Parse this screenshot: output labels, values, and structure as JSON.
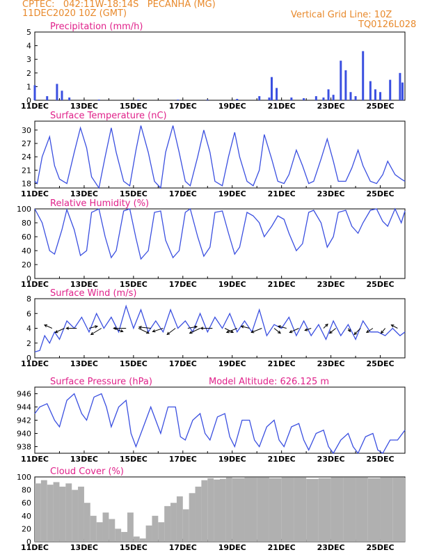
{
  "header": {
    "line1": "CPTEC:   042:11W-18:14S   PECANHA (MG)",
    "line2": "11DEC2020 10Z (GMT)",
    "right1": "Vertical Grid Line: 10Z",
    "right2": "TQ0126L028"
  },
  "colors": {
    "header": "#e8892b",
    "title": "#e0218a",
    "line": "#3a4fe0",
    "cloud": "#b0b0b0",
    "arrow": "#000000"
  },
  "chart_data": [
    {
      "type": "bar",
      "title": "Precipitation (mm/h)",
      "ylim": [
        0,
        5
      ],
      "yticks": [
        "0",
        "1",
        "2",
        "3",
        "4",
        "5"
      ],
      "xticks": [
        "11DEC",
        "13DEC",
        "15DEC",
        "17DEC",
        "19DEC",
        "21DEC",
        "23DEC",
        "25DEC"
      ],
      "x": [
        "11DEC",
        "11.5DEC",
        "11.9DEC",
        "12.1DEC",
        "12.4DEC",
        "13.6DEC",
        "15.2DEC",
        "16.8DEC",
        "18.0DEC",
        "19.2DEC",
        "20.1DEC",
        "20.5DEC",
        "20.6DEC",
        "20.8DEC",
        "21.4DEC",
        "21.9DEC",
        "22.4DEC",
        "22.7DEC",
        "22.9DEC",
        "23.1DEC",
        "23.4DEC",
        "23.6DEC",
        "23.8DEC",
        "24.0DEC",
        "24.3DEC",
        "24.6DEC",
        "24.8DEC",
        "25.0DEC",
        "25.4DEC",
        "25.8DEC",
        "25.9DEC"
      ],
      "values": [
        1.1,
        0.3,
        1.2,
        0.7,
        0.2,
        0.05,
        0.05,
        0.05,
        0.05,
        0.1,
        0.3,
        0.2,
        1.7,
        0.9,
        0.2,
        0.15,
        0.3,
        0.2,
        0.8,
        0.4,
        2.9,
        2.2,
        0.6,
        0.3,
        3.6,
        1.4,
        0.8,
        0.6,
        1.5,
        2.0,
        1.3
      ]
    },
    {
      "type": "line",
      "title": "Surface Temperature (nC)",
      "ylim": [
        17,
        32
      ],
      "yticks": [
        "18",
        "21",
        "24",
        "27",
        "30"
      ],
      "xticks": [
        "11DEC",
        "13DEC",
        "15DEC",
        "17DEC",
        "19DEC",
        "21DEC",
        "23DEC",
        "25DEC"
      ],
      "x": [
        11.0,
        11.1,
        11.3,
        11.6,
        11.8,
        12.0,
        12.3,
        12.6,
        12.85,
        13.1,
        13.3,
        13.6,
        13.85,
        14.1,
        14.3,
        14.6,
        14.85,
        15.1,
        15.3,
        15.6,
        15.85,
        16.1,
        16.3,
        16.6,
        16.85,
        17.1,
        17.3,
        17.6,
        17.85,
        18.1,
        18.3,
        18.6,
        18.85,
        19.1,
        19.3,
        19.6,
        19.85,
        20.1,
        20.3,
        20.6,
        20.85,
        21.1,
        21.3,
        21.6,
        21.85,
        22.1,
        22.3,
        22.6,
        22.85,
        23.1,
        23.3,
        23.6,
        23.85,
        24.1,
        24.3,
        24.6,
        24.85,
        25.1,
        25.3,
        25.6,
        25.85,
        26.0
      ],
      "y": [
        18.5,
        18.0,
        24.0,
        28.5,
        22.0,
        19.0,
        18.0,
        25.0,
        30.5,
        26.0,
        19.5,
        17.0,
        24.0,
        30.5,
        25.0,
        18.5,
        17.5,
        25.5,
        31.0,
        25.0,
        18.5,
        17.0,
        25.0,
        31.0,
        25.0,
        18.5,
        17.5,
        24.0,
        30.0,
        25.0,
        18.5,
        17.5,
        24.0,
        29.5,
        24.0,
        18.5,
        17.5,
        21.0,
        29.0,
        23.5,
        18.5,
        18.0,
        20.0,
        25.5,
        22.0,
        18.0,
        18.5,
        23.5,
        28.0,
        23.0,
        18.5,
        18.5,
        21.5,
        25.5,
        22.0,
        18.5,
        18.0,
        20.0,
        23.0,
        20.0,
        19.0,
        18.5
      ]
    },
    {
      "type": "line",
      "title": "Relative Humidity (%)",
      "ylim": [
        0,
        100
      ],
      "yticks": [
        "0",
        "20",
        "40",
        "60",
        "80",
        "100"
      ],
      "xticks": [
        "11DEC",
        "13DEC",
        "15DEC",
        "17DEC",
        "19DEC",
        "21DEC",
        "23DEC",
        "25DEC"
      ],
      "x": [
        11.0,
        11.3,
        11.6,
        11.8,
        12.1,
        12.3,
        12.6,
        12.85,
        13.1,
        13.3,
        13.6,
        13.85,
        14.1,
        14.3,
        14.6,
        14.85,
        15.1,
        15.3,
        15.6,
        15.85,
        16.1,
        16.3,
        16.6,
        16.85,
        17.1,
        17.3,
        17.6,
        17.85,
        18.1,
        18.3,
        18.6,
        18.85,
        19.1,
        19.3,
        19.6,
        19.85,
        20.1,
        20.3,
        20.6,
        20.85,
        21.1,
        21.3,
        21.6,
        21.85,
        22.1,
        22.3,
        22.6,
        22.85,
        23.1,
        23.3,
        23.6,
        23.85,
        24.1,
        24.3,
        24.6,
        24.85,
        25.1,
        25.3,
        25.6,
        25.85,
        26.0
      ],
      "y": [
        100,
        80,
        40,
        35,
        70,
        99,
        70,
        33,
        40,
        95,
        100,
        60,
        30,
        40,
        97,
        100,
        58,
        28,
        40,
        95,
        97,
        55,
        30,
        40,
        95,
        100,
        60,
        32,
        45,
        95,
        97,
        65,
        35,
        45,
        95,
        90,
        80,
        60,
        75,
        90,
        85,
        65,
        40,
        50,
        95,
        98,
        80,
        45,
        60,
        95,
        98,
        75,
        65,
        80,
        98,
        100,
        82,
        75,
        100,
        80,
        97
      ]
    },
    {
      "type": "line",
      "title": "Surface Wind (m/s)",
      "ylim": [
        0,
        8
      ],
      "yticks": [
        "0",
        "2",
        "4",
        "6",
        "8"
      ],
      "xticks": [
        "11DEC",
        "13DEC",
        "15DEC",
        "17DEC",
        "19DEC",
        "21DEC",
        "23DEC",
        "25DEC"
      ],
      "x": [
        11.0,
        11.2,
        11.4,
        11.6,
        11.8,
        12.0,
        12.3,
        12.6,
        12.9,
        13.2,
        13.5,
        13.8,
        14.1,
        14.4,
        14.7,
        15.0,
        15.3,
        15.6,
        15.9,
        16.2,
        16.5,
        16.8,
        17.1,
        17.4,
        17.7,
        18.0,
        18.3,
        18.6,
        18.9,
        19.2,
        19.5,
        19.8,
        20.1,
        20.4,
        20.7,
        21.0,
        21.3,
        21.6,
        21.9,
        22.2,
        22.5,
        22.8,
        23.1,
        23.4,
        23.7,
        24.0,
        24.3,
        24.6,
        24.9,
        25.2,
        25.5,
        25.8,
        26.0
      ],
      "y": [
        0.8,
        1.0,
        3.0,
        2.0,
        3.5,
        2.5,
        5.0,
        4.0,
        5.5,
        3.5,
        6.0,
        4.0,
        5.5,
        3.5,
        7.0,
        4.0,
        6.5,
        3.5,
        5.0,
        3.5,
        6.5,
        4.0,
        5.0,
        3.5,
        6.0,
        3.5,
        5.5,
        4.0,
        6.0,
        3.5,
        5.0,
        3.5,
        6.5,
        3.0,
        4.5,
        4.0,
        5.5,
        3.0,
        5.0,
        3.0,
        4.5,
        2.5,
        5.0,
        3.0,
        4.5,
        2.5,
        5.0,
        3.5,
        3.5,
        3.0,
        4.0,
        3.0,
        3.5
      ],
      "vectors_x": [
        11.7,
        12.2,
        12.7,
        13.2,
        13.7,
        14.2,
        14.7,
        15.2,
        15.7,
        16.2,
        16.7,
        17.2,
        17.7,
        18.2,
        18.7,
        19.2,
        19.7,
        20.2,
        20.7,
        21.2,
        21.7,
        22.2,
        22.7,
        23.2,
        23.7,
        24.2,
        24.7,
        25.2,
        25.7
      ],
      "vectors_u": [
        -1.8,
        -2.2,
        -2.5,
        2.0,
        -2.5,
        2.2,
        -3.0,
        2.5,
        -2.8,
        -2.5,
        -2.0,
        2.2,
        -2.5,
        -2.8,
        2.0,
        -2.5,
        -2.0,
        -2.5,
        1.5,
        -2.0,
        -2.2,
        -1.5,
        1.0,
        -1.5,
        0.5,
        -1.5,
        -1.5,
        -1.0,
        -1.5
      ],
      "vectors_v": [
        0.8,
        -1.0,
        0.0,
        0.5,
        -1.5,
        -0.8,
        0.0,
        -1.2,
        0.3,
        -0.8,
        -1.5,
        0.4,
        -1.2,
        0.0,
        -1.0,
        -1.0,
        0.5,
        -1.0,
        -1.2,
        0.5,
        -1.0,
        -0.5,
        1.0,
        -1.2,
        -0.8,
        -1.5,
        -1.0,
        -1.2,
        0.8
      ]
    },
    {
      "type": "line",
      "title": "Surface Pressure (hPa)",
      "annotation": "Model Altitude: 626.125  m",
      "ylim": [
        937,
        947
      ],
      "yticks": [
        "938",
        "940",
        "942",
        "944",
        "946"
      ],
      "xticks": [
        "11DEC",
        "13DEC",
        "15DEC",
        "17DEC",
        "19DEC",
        "21DEC",
        "23DEC",
        "25DEC"
      ],
      "x": [
        11.0,
        11.2,
        11.5,
        11.8,
        12.0,
        12.3,
        12.6,
        12.9,
        13.1,
        13.4,
        13.7,
        13.9,
        14.1,
        14.4,
        14.7,
        14.9,
        15.1,
        15.4,
        15.7,
        15.9,
        16.1,
        16.4,
        16.7,
        16.9,
        17.1,
        17.4,
        17.7,
        17.9,
        18.1,
        18.4,
        18.7,
        18.9,
        19.1,
        19.4,
        19.7,
        19.9,
        20.1,
        20.4,
        20.7,
        20.9,
        21.1,
        21.4,
        21.7,
        21.9,
        22.1,
        22.4,
        22.7,
        22.9,
        23.1,
        23.4,
        23.7,
        23.9,
        24.1,
        24.4,
        24.7,
        24.9,
        25.1,
        25.4,
        25.7,
        26.0
      ],
      "y": [
        943,
        944,
        944.5,
        942,
        941,
        945,
        946,
        943,
        942,
        945.5,
        946,
        944,
        941,
        944,
        945,
        940,
        938,
        941,
        944,
        942,
        940,
        944,
        944,
        939.5,
        939,
        942,
        943,
        940,
        939,
        942.5,
        943,
        939.5,
        938,
        942,
        942,
        939,
        938,
        941,
        942,
        939,
        938,
        941,
        941.5,
        939,
        937.5,
        940,
        940.5,
        938,
        937,
        939,
        940,
        938,
        937,
        939.5,
        940,
        937.5,
        937,
        939,
        939,
        940.5
      ]
    },
    {
      "type": "bar",
      "title": "Cloud Cover (%)",
      "ylim": [
        0,
        100
      ],
      "yticks": [
        "0",
        "20",
        "40",
        "60",
        "80",
        "100"
      ],
      "xticks": [
        "11DEC",
        "13DEC",
        "15DEC",
        "17DEC",
        "19DEC",
        "21DEC",
        "23DEC",
        "25DEC"
      ],
      "x": [
        11.0,
        11.25,
        11.5,
        11.75,
        12.0,
        12.25,
        12.5,
        12.75,
        13.0,
        13.25,
        13.5,
        13.75,
        14.0,
        14.25,
        14.5,
        14.75,
        15.0,
        15.25,
        15.5,
        15.75,
        16.0,
        16.25,
        16.5,
        16.75,
        17.0,
        17.25,
        17.5,
        17.75,
        18.0,
        18.25,
        18.5,
        18.75,
        19.0,
        19.5,
        20.0,
        20.5,
        21.0,
        21.5,
        22.0,
        22.5,
        23.0,
        23.5,
        24.0,
        24.5,
        25.0,
        25.5,
        26.0
      ],
      "values": [
        90,
        95,
        88,
        92,
        85,
        90,
        80,
        85,
        60,
        40,
        30,
        45,
        35,
        20,
        15,
        45,
        8,
        5,
        25,
        40,
        30,
        55,
        60,
        70,
        50,
        75,
        85,
        95,
        98,
        96,
        97,
        99,
        98,
        99,
        99,
        98,
        99,
        99,
        97,
        98,
        99,
        99,
        99,
        98,
        99,
        99,
        99
      ]
    }
  ]
}
